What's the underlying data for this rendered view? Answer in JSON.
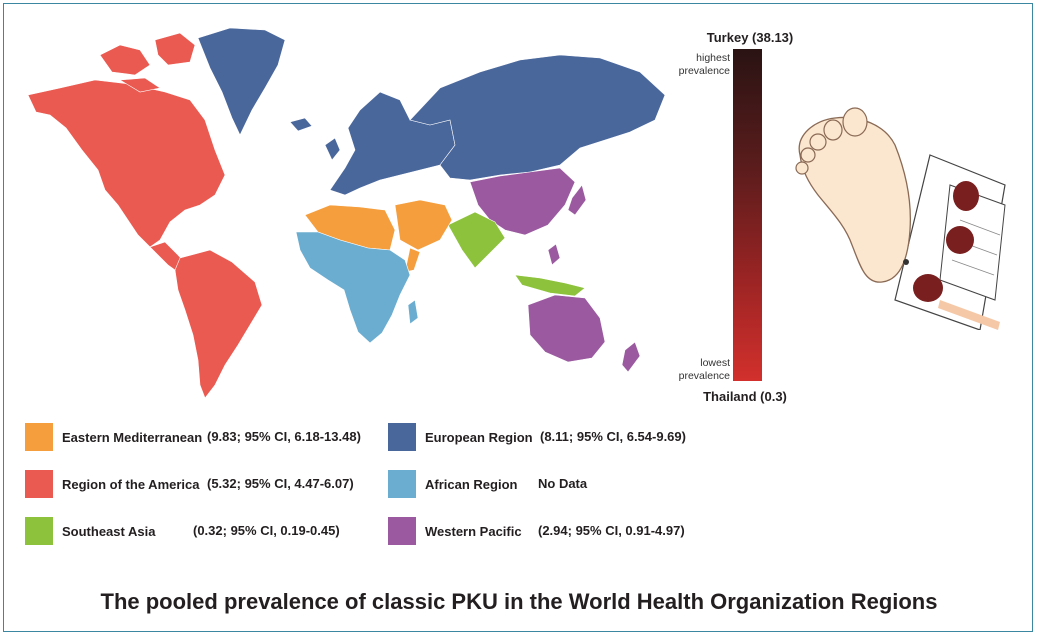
{
  "colors": {
    "eastern_mediterranean": "#f59e3e",
    "americas": "#ea5a51",
    "southeast_asia": "#8dc23c",
    "european": "#4a679c",
    "african": "#6badd0",
    "western_pacific": "#9b5aa0"
  },
  "scale": {
    "top_label": "Turkey (38.13)",
    "bottom_label": "Thailand (0.3)",
    "high_note": "highest prevalence",
    "low_note": "lowest prevalence",
    "max_value": 38.13,
    "min_value": 0.3
  },
  "legend": {
    "em": {
      "name": "Eastern Mediterranean",
      "stat": "(9.83; 95% CI, 6.18-13.48)"
    },
    "am": {
      "name": "Region of the America",
      "stat": "(5.32; 95% CI, 4.47-6.07)"
    },
    "sea": {
      "name": "Southeast Asia",
      "stat": "(0.32; 95% CI, 0.19-0.45)"
    },
    "eu": {
      "name": "European Region",
      "stat": "(8.11; 95% CI, 6.54-9.69)"
    },
    "af": {
      "name": "African Region",
      "stat": "No Data"
    },
    "wp": {
      "name": "Western Pacific",
      "stat": "(2.94; 95% CI, 0.91-4.97)"
    }
  },
  "caption": "The pooled prevalence of classic PKU in the World Health Organization Regions"
}
